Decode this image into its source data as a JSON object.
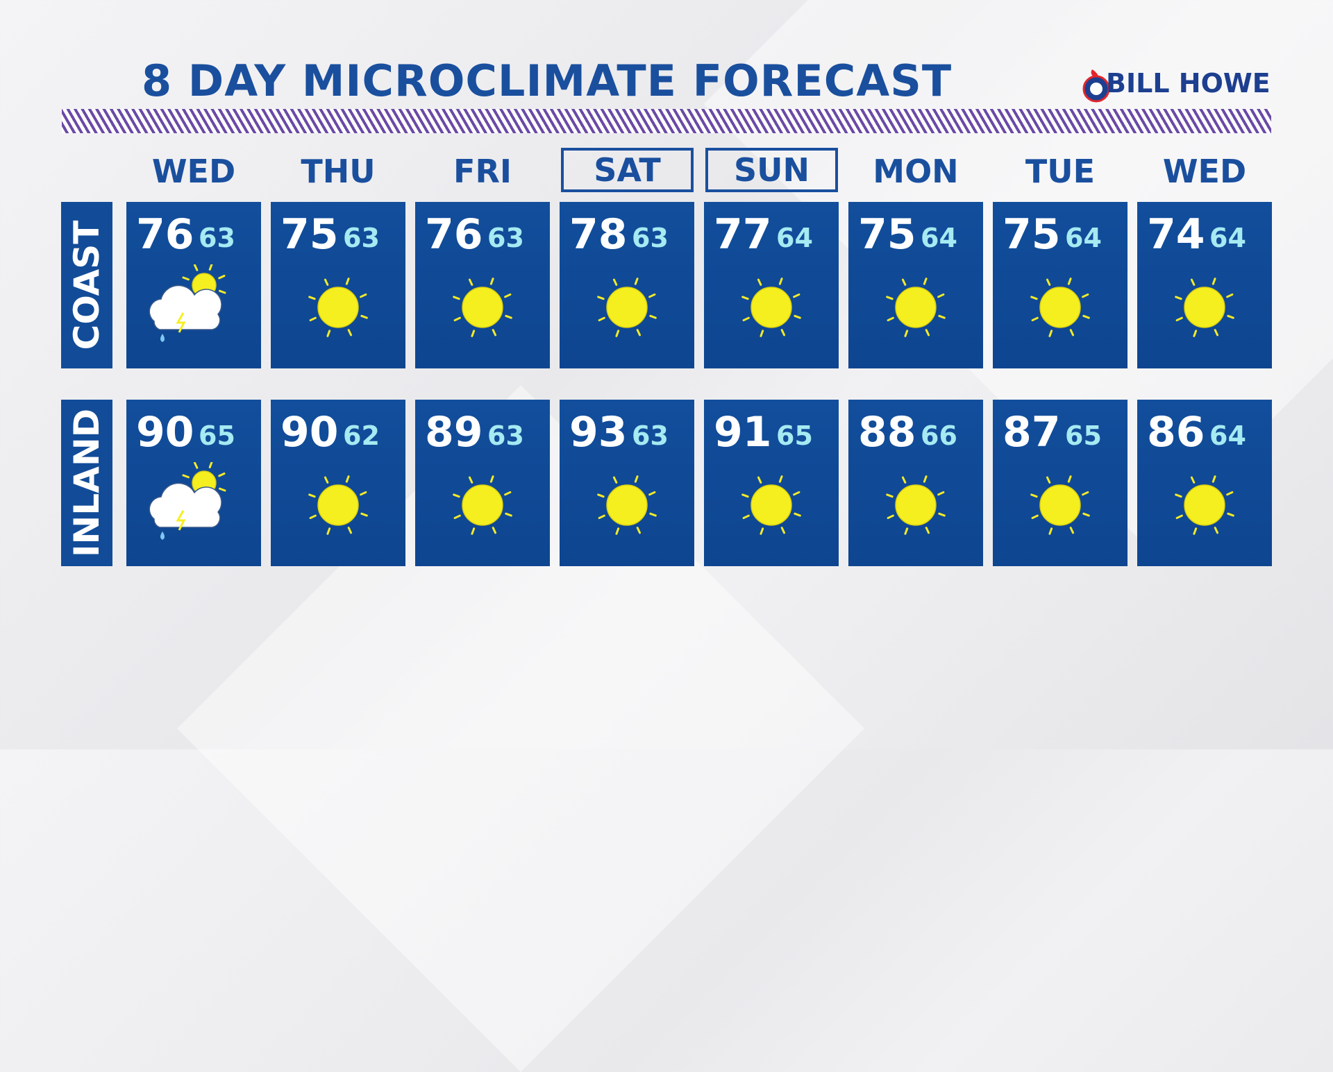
{
  "header": {
    "title": "8 DAY MICROCLIMATE FORECAST",
    "sponsor": "BILL HOWE"
  },
  "days": [
    {
      "label": "WED",
      "boxed": false
    },
    {
      "label": "THU",
      "boxed": false
    },
    {
      "label": "FRI",
      "boxed": false
    },
    {
      "label": "SAT",
      "boxed": true
    },
    {
      "label": "SUN",
      "boxed": true
    },
    {
      "label": "MON",
      "boxed": false
    },
    {
      "label": "TUE",
      "boxed": false
    },
    {
      "label": "WED",
      "boxed": false
    }
  ],
  "rows": [
    {
      "label": "COAST",
      "highs": [
        76,
        75,
        76,
        78,
        77,
        75,
        75,
        74
      ],
      "lows": [
        63,
        63,
        63,
        63,
        64,
        64,
        64,
        64
      ],
      "icons": [
        "thunderstorm",
        "sunny",
        "sunny",
        "sunny",
        "sunny",
        "sunny",
        "sunny",
        "sunny"
      ]
    },
    {
      "label": "INLAND",
      "highs": [
        90,
        90,
        89,
        93,
        91,
        88,
        87,
        86
      ],
      "lows": [
        65,
        62,
        63,
        63,
        65,
        66,
        65,
        64
      ],
      "icons": [
        "thunderstorm",
        "sunny",
        "sunny",
        "sunny",
        "sunny",
        "sunny",
        "sunny",
        "sunny"
      ]
    }
  ]
}
